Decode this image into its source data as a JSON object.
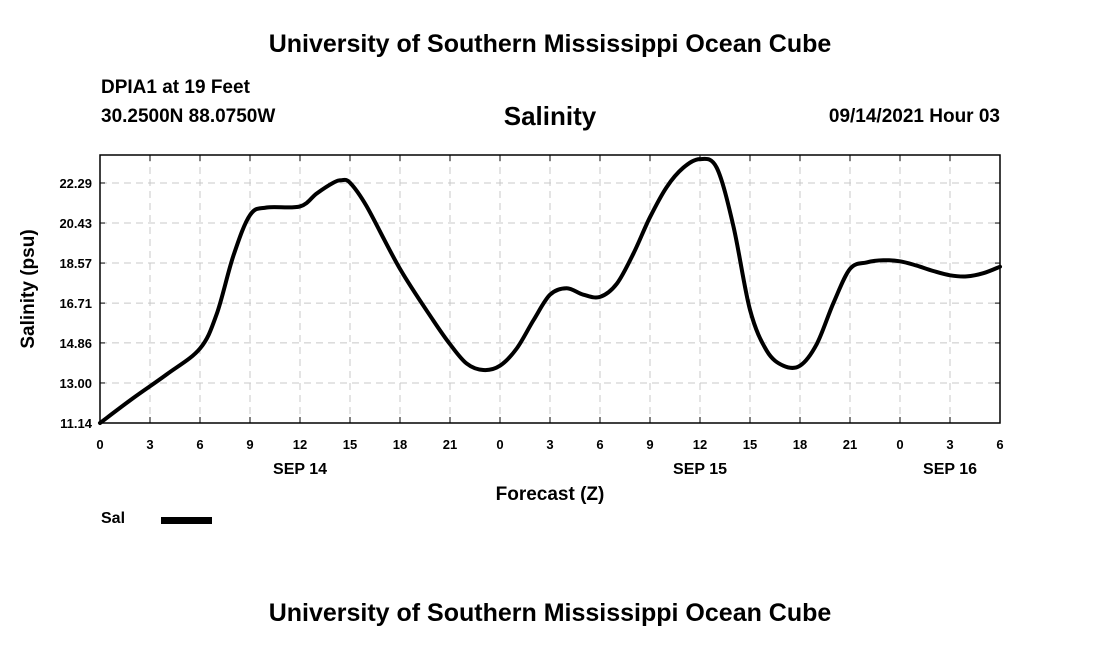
{
  "header": {
    "title": "University of Southern Mississippi Ocean Cube",
    "station": "DPIA1 at 19 Feet",
    "coords": "30.2500N  88.0750W",
    "variable": "Salinity",
    "datetime": "09/14/2021 Hour 03"
  },
  "footer": {
    "title": "University of Southern Mississippi Ocean Cube"
  },
  "legend": {
    "label": "Sal",
    "color": "#000000"
  },
  "chart_data": {
    "type": "line",
    "title": "Salinity",
    "xlabel": "Forecast (Z)",
    "ylabel": "Salinity (psu)",
    "xlim": [
      0,
      54
    ],
    "ylim": [
      11.14,
      23.59
    ],
    "grid": true,
    "y_ticks": [
      "11.14",
      "13.00",
      "14.86",
      "16.71",
      "18.57",
      "20.43",
      "22.29"
    ],
    "x_ticks": [
      "0",
      "3",
      "6",
      "9",
      "12",
      "15",
      "18",
      "21",
      "0",
      "3",
      "6",
      "9",
      "12",
      "15",
      "18",
      "21",
      "0",
      "3",
      "6"
    ],
    "x_tick_hours": [
      0,
      3,
      6,
      9,
      12,
      15,
      18,
      21,
      24,
      27,
      30,
      33,
      36,
      39,
      42,
      45,
      48,
      51,
      54
    ],
    "date_labels": [
      {
        "label": "SEP 14",
        "hour": 12
      },
      {
        "label": "SEP 15",
        "hour": 36
      },
      {
        "label": "SEP 16",
        "hour": 51
      }
    ],
    "series": [
      {
        "name": "Sal",
        "x": [
          0,
          2,
          4,
          6,
          7,
          8,
          9,
          10,
          12,
          13,
          14,
          14.5,
          15,
          16,
          18,
          20,
          21,
          22,
          23,
          24,
          25,
          26,
          27,
          28,
          29,
          30,
          31,
          32,
          33,
          34,
          35,
          36,
          37,
          38,
          39,
          40,
          41,
          42,
          43,
          44,
          45,
          46,
          47,
          48,
          49,
          50,
          51,
          52,
          53,
          54
        ],
        "values": [
          11.14,
          12.3,
          13.4,
          14.6,
          16.2,
          18.9,
          20.8,
          21.15,
          21.2,
          21.8,
          22.3,
          22.42,
          22.3,
          21.2,
          18.3,
          15.9,
          14.8,
          13.9,
          13.6,
          13.8,
          14.6,
          15.9,
          17.1,
          17.4,
          17.1,
          17.0,
          17.6,
          19.0,
          20.7,
          22.1,
          23.0,
          23.4,
          23.0,
          20.3,
          16.4,
          14.5,
          13.8,
          13.8,
          14.8,
          16.7,
          18.3,
          18.6,
          18.7,
          18.65,
          18.45,
          18.2,
          18.0,
          17.95,
          18.1,
          18.4
        ]
      }
    ]
  }
}
